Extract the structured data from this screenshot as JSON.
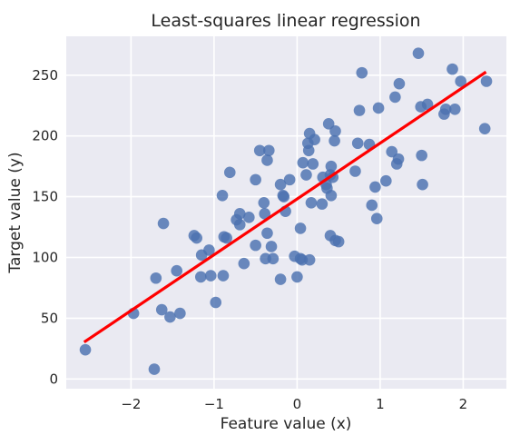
{
  "chart_data": {
    "type": "scatter",
    "title": "Least-squares linear regression",
    "xlabel": "Feature value (x)",
    "ylabel": "Target value (y)",
    "xlim": [
      -2.78,
      2.52
    ],
    "ylim": [
      -8,
      282
    ],
    "xticks": [
      -2,
      -1,
      0,
      1,
      2
    ],
    "xtick_labels": [
      "−2",
      "−1",
      "0",
      "1",
      "2"
    ],
    "yticks": [
      0,
      50,
      100,
      150,
      200,
      250
    ],
    "ytick_labels": [
      "0",
      "50",
      "100",
      "150",
      "200",
      "250"
    ],
    "grid": true,
    "colors": {
      "background": "#eaeaf2",
      "grid": "#ffffff",
      "points": "#4c72b0",
      "line": "#ff0000"
    },
    "series": [
      {
        "type": "scatter",
        "points": [
          [
            -2.55,
            24
          ],
          [
            -1.97,
            54
          ],
          [
            -1.72,
            8
          ],
          [
            -1.7,
            83
          ],
          [
            -1.63,
            57
          ],
          [
            -1.61,
            128
          ],
          [
            -1.53,
            51
          ],
          [
            -1.45,
            89
          ],
          [
            -1.41,
            54
          ],
          [
            -1.24,
            118
          ],
          [
            -1.21,
            116
          ],
          [
            -1.16,
            84
          ],
          [
            -1.15,
            102
          ],
          [
            -1.06,
            106
          ],
          [
            -1.04,
            85
          ],
          [
            -0.98,
            63
          ],
          [
            -0.9,
            151
          ],
          [
            -0.89,
            85
          ],
          [
            -0.88,
            117
          ],
          [
            -0.85,
            116
          ],
          [
            -0.81,
            170
          ],
          [
            -0.73,
            131
          ],
          [
            -0.69,
            127
          ],
          [
            -0.69,
            136
          ],
          [
            -0.64,
            95
          ],
          [
            -0.58,
            133
          ],
          [
            -0.5,
            110
          ],
          [
            -0.5,
            164
          ],
          [
            -0.45,
            188
          ],
          [
            -0.4,
            145
          ],
          [
            -0.39,
            136
          ],
          [
            -0.38,
            99
          ],
          [
            -0.36,
            180
          ],
          [
            -0.36,
            120
          ],
          [
            -0.34,
            188
          ],
          [
            -0.31,
            109
          ],
          [
            -0.29,
            99
          ],
          [
            -0.2,
            82
          ],
          [
            -0.2,
            160
          ],
          [
            -0.17,
            151
          ],
          [
            -0.16,
            150
          ],
          [
            -0.14,
            138
          ],
          [
            -0.09,
            164
          ],
          [
            -0.03,
            101
          ],
          [
            0.0,
            84
          ],
          [
            0.04,
            124
          ],
          [
            0.04,
            99
          ],
          [
            0.06,
            98
          ],
          [
            0.07,
            178
          ],
          [
            0.11,
            168
          ],
          [
            0.13,
            194
          ],
          [
            0.14,
            188
          ],
          [
            0.15,
            98
          ],
          [
            0.15,
            202
          ],
          [
            0.17,
            145
          ],
          [
            0.19,
            177
          ],
          [
            0.21,
            197
          ],
          [
            0.3,
            144
          ],
          [
            0.31,
            166
          ],
          [
            0.35,
            160
          ],
          [
            0.36,
            157
          ],
          [
            0.38,
            210
          ],
          [
            0.4,
            168
          ],
          [
            0.4,
            118
          ],
          [
            0.41,
            151
          ],
          [
            0.41,
            175
          ],
          [
            0.43,
            166
          ],
          [
            0.45,
            196
          ],
          [
            0.46,
            114
          ],
          [
            0.46,
            204
          ],
          [
            0.5,
            113
          ],
          [
            0.7,
            171
          ],
          [
            0.73,
            194
          ],
          [
            0.75,
            221
          ],
          [
            0.78,
            252
          ],
          [
            0.87,
            193
          ],
          [
            0.9,
            143
          ],
          [
            0.94,
            158
          ],
          [
            0.96,
            132
          ],
          [
            0.98,
            223
          ],
          [
            1.07,
            163
          ],
          [
            1.14,
            187
          ],
          [
            1.18,
            232
          ],
          [
            1.2,
            177
          ],
          [
            1.22,
            181
          ],
          [
            1.23,
            243
          ],
          [
            1.46,
            268
          ],
          [
            1.49,
            224
          ],
          [
            1.5,
            184
          ],
          [
            1.51,
            160
          ],
          [
            1.57,
            226
          ],
          [
            1.77,
            218
          ],
          [
            1.79,
            222
          ],
          [
            1.87,
            255
          ],
          [
            1.9,
            222
          ],
          [
            1.97,
            245
          ],
          [
            2.26,
            206
          ],
          [
            2.28,
            245
          ]
        ]
      },
      {
        "type": "line",
        "x": [
          -2.55,
          2.26
        ],
        "y": [
          31,
          252
        ]
      }
    ]
  }
}
